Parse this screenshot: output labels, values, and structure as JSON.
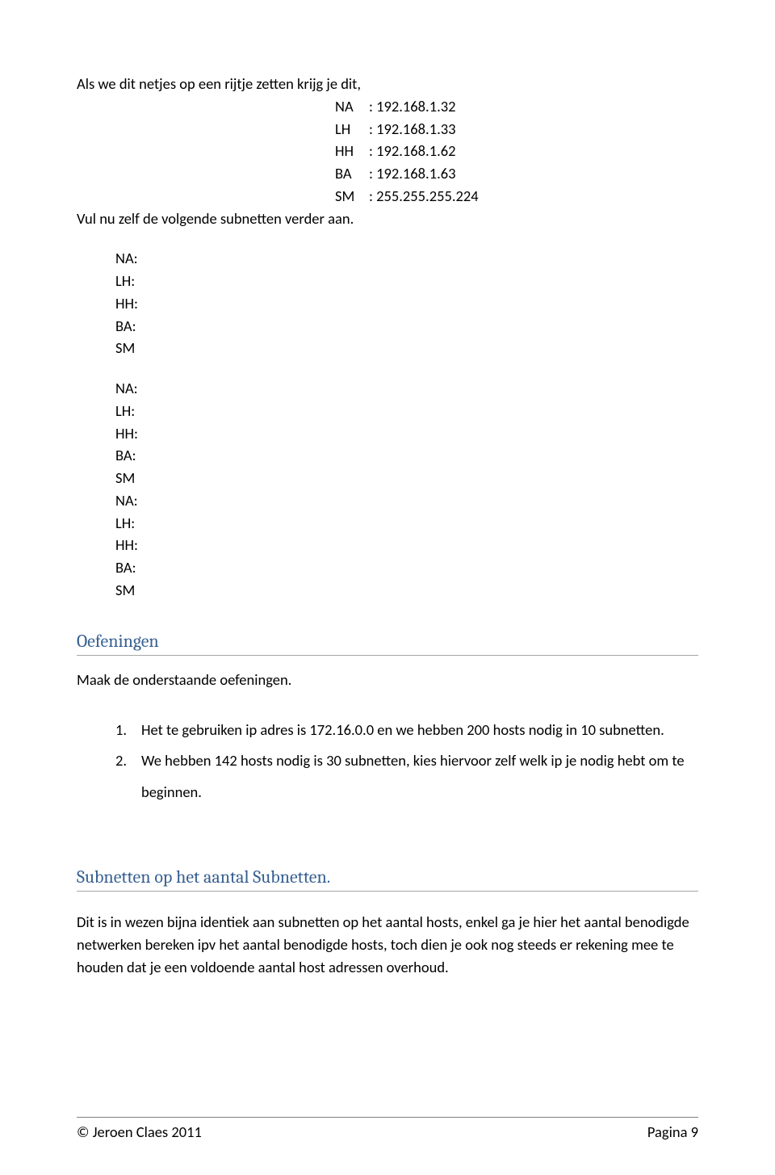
{
  "intro": "Als we dit netjes op een rijtje zetten krijg je dit,",
  "rows": [
    {
      "label": "NA",
      "value": ": 192.168.1.32"
    },
    {
      "label": "LH",
      "value": ": 192.168.1.33"
    },
    {
      "label": "HH",
      "value": ": 192.168.1.62"
    },
    {
      "label": "BA",
      "value": ": 192.168.1.63"
    },
    {
      "label": "SM",
      "value": ": 255.255.255.224"
    }
  ],
  "fillin_line": "Vul nu zelf de volgende subnetten verder aan.",
  "blank_blocks": [
    [
      "NA:",
      "LH:",
      "HH:",
      "BA:",
      "SM"
    ],
    [
      "NA:",
      "LH:",
      "HH:",
      "BA:",
      "SM",
      "NA:",
      "LH:",
      "HH:",
      "BA:",
      "SM"
    ]
  ],
  "heading1": "Oefeningen",
  "exercise_intro": "Maak de onderstaande oefeningen.",
  "exercises": [
    {
      "num": "1.",
      "text": "Het te gebruiken ip adres is 172.16.0.0 en we hebben 200 hosts nodig in 10 subnetten."
    },
    {
      "num": "2.",
      "text": "We hebben 142 hosts nodig is 30 subnetten, kies hiervoor zelf welk ip je nodig hebt om te beginnen."
    }
  ],
  "heading2": "Subnetten op het aantal Subnetten.",
  "paragraph": "Dit is in wezen bijna identiek aan subnetten op het aantal hosts, enkel ga je hier het aantal benodigde netwerken bereken ipv het aantal benodigde hosts, toch dien je ook nog steeds er rekening mee te houden dat je een voldoende aantal host adressen overhoud.",
  "footer_left": "© Jeroen Claes 2011",
  "footer_right": "Pagina 9"
}
